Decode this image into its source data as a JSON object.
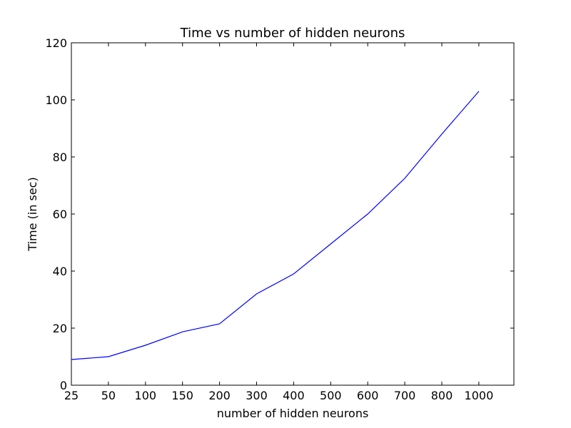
{
  "chart_data": {
    "type": "line",
    "title": "Time vs number of hidden neurons",
    "xlabel": "number of hidden neurons",
    "ylabel": "Time (in sec)",
    "categories": [
      "25",
      "50",
      "100",
      "150",
      "200",
      "300",
      "400",
      "500",
      "600",
      "700",
      "800",
      "1000"
    ],
    "series": [
      {
        "color": "#0000ff",
        "points": [
          {
            "x": "25",
            "y": 9.0
          },
          {
            "x": "50",
            "y": 10.0
          },
          {
            "x": "100",
            "y": 14.0
          },
          {
            "x": "150",
            "y": 18.7
          },
          {
            "x": "200",
            "y": 21.5
          },
          {
            "x": "300",
            "y": 32.0
          },
          {
            "x": "400",
            "y": 39.0
          },
          {
            "x": "500",
            "y": 49.5
          },
          {
            "x": "600",
            "y": 60.0
          },
          {
            "x": "700",
            "y": 72.5
          },
          {
            "x": "800",
            "y": 88.0
          },
          {
            "x": "1000",
            "y": 103.0
          }
        ]
      }
    ],
    "yticks": [
      0,
      20,
      40,
      60,
      80,
      100,
      120
    ],
    "ylim": [
      0,
      120
    ],
    "grid": false,
    "legend": false
  }
}
